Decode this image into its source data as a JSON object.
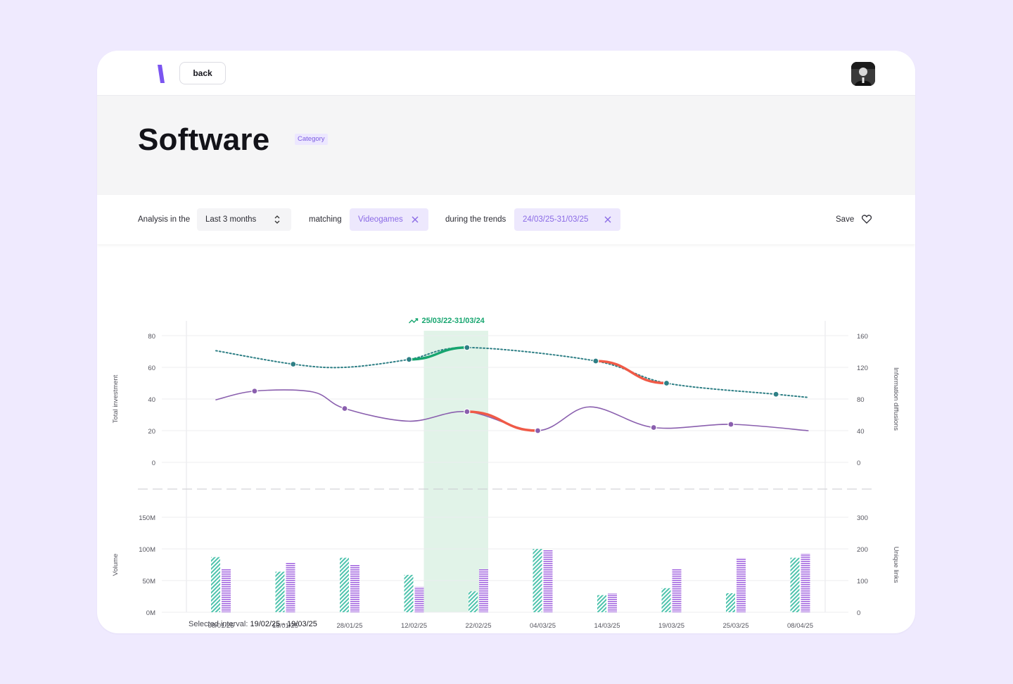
{
  "header": {
    "back_label": "back",
    "logo_icon": "logo-slash-icon",
    "avatar_icon": "user-avatar"
  },
  "hero": {
    "title": "Software",
    "badge": "Category"
  },
  "filters": {
    "analysis_label": "Analysis in the",
    "period_value": "Last 3 months",
    "matching_label": "matching",
    "matching_chip": "Videogames",
    "trends_label": "during the trends",
    "trends_chip": "24/03/25-31/03/25",
    "save_label": "Save"
  },
  "colors": {
    "accent": "#8b6be6",
    "teal": "#2e7f85",
    "green": "#16a56f",
    "red": "#f05a47",
    "purple": "#8a5fae",
    "bar_teal": "#4ec3ad",
    "bar_purple": "#a468e0",
    "highlight": "#e1f3e8"
  },
  "chart_data": [
    {
      "type": "line",
      "trend_label": "25/03/22-31/03/24",
      "highlight_range": [
        "12/02/25",
        "22/02/25"
      ],
      "x": [
        "08/01/25",
        "18/01/25",
        "28/01/25",
        "12/02/25",
        "22/02/25",
        "04/03/25",
        "14/03/25",
        "19/03/25",
        "25/03/25",
        "08/04/25"
      ],
      "ylabel": "Total investment",
      "y2label": "Information diffusions",
      "yticks": [
        "80",
        "60",
        "40",
        "20",
        "0"
      ],
      "y2ticks": [
        "160",
        "120",
        "80",
        "40",
        "0"
      ],
      "ylim": [
        0,
        80
      ],
      "y2lim": [
        0,
        160
      ],
      "series": [
        {
          "axis": "right",
          "style": "dotted",
          "color": "#2e7f85",
          "points": [
            [
              0,
              141
            ],
            [
              1.2,
              124
            ],
            [
              2,
              120
            ],
            [
              3,
              130
            ],
            [
              3.9,
              145
            ],
            [
              5.9,
              128
            ],
            [
              7,
              100
            ],
            [
              8.7,
              86
            ],
            [
              9.2,
              82
            ]
          ],
          "markers": [
            [
              1.2,
              124
            ],
            [
              3,
              130
            ],
            [
              3.9,
              145
            ],
            [
              5.9,
              128
            ],
            [
              7,
              100
            ],
            [
              8.7,
              86
            ]
          ],
          "highlight_segments": [
            {
              "from": 3,
              "to": 3.9,
              "color": "#16a56f"
            },
            {
              "from": 5.9,
              "to": 7,
              "color": "#f05a47"
            }
          ]
        },
        {
          "axis": "left",
          "style": "solid",
          "color": "#8a5fae",
          "points": [
            [
              0,
              39.5
            ],
            [
              0.6,
              45
            ],
            [
              1.5,
              44.5
            ],
            [
              2,
              34
            ],
            [
              3,
              26
            ],
            [
              3.9,
              32
            ],
            [
              5,
              20
            ],
            [
              5.8,
              35
            ],
            [
              6.8,
              22
            ],
            [
              8,
              24
            ],
            [
              9.2,
              20
            ]
          ],
          "markers": [
            [
              0.6,
              45
            ],
            [
              2,
              34
            ],
            [
              3.9,
              32
            ],
            [
              5,
              20
            ],
            [
              6.8,
              22
            ],
            [
              8,
              24
            ]
          ],
          "highlight_segments": [
            {
              "from": 3.9,
              "to": 5,
              "color": "#f05a47"
            }
          ]
        }
      ]
    },
    {
      "type": "bar",
      "categories": [
        "08/01/25",
        "18/01/25",
        "28/01/25",
        "12/02/25",
        "22/02/25",
        "04/03/25",
        "14/03/25",
        "19/03/25",
        "25/03/25",
        "08/04/25"
      ],
      "ylabel": "Volume",
      "y2label": "Unique links",
      "yticks": [
        "150M",
        "100M",
        "50M",
        "0M"
      ],
      "y2ticks": [
        "300",
        "200",
        "100",
        "0"
      ],
      "ylim": [
        0,
        150
      ],
      "y2lim": [
        0,
        300
      ],
      "series": [
        {
          "axis": "left",
          "color": "#4ec3ad",
          "pattern": "diagonal",
          "values": [
            87,
            64,
            86,
            59,
            33,
            100,
            27,
            38,
            30,
            86
          ]
        },
        {
          "axis": "left",
          "color": "#a468e0",
          "pattern": "horizontal",
          "values": [
            69,
            78,
            75,
            40,
            68,
            98,
            30,
            68,
            86,
            93
          ]
        }
      ]
    }
  ],
  "footer": {
    "interval_label": "Selected interval:",
    "interval_value": "19/02/25 - 19/03/25"
  }
}
